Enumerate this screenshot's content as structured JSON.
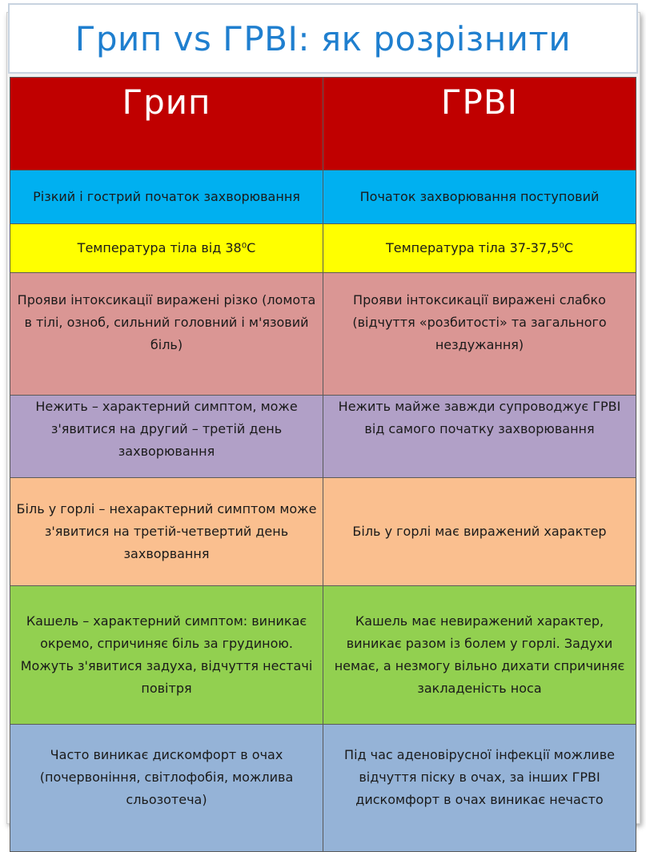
{
  "title": "Грип vs ГРВІ: як розрізнити",
  "headers": {
    "flu": "Грип",
    "arvi": "ГРВІ"
  },
  "rows": [
    {
      "flu": "Різкий і гострий початок захворювання",
      "arvi": "Початок захворювання поступовий"
    },
    {
      "flu": "Температура тіла від 38⁰С",
      "arvi": "Температура тіла 37-37,5⁰С"
    },
    {
      "flu": "Прояви інтоксикації виражені різко (ломота в тілі, озноб, сильний головний і м'язовий біль)",
      "arvi": "Прояви інтоксикації виражені слабко (відчуття «розбитості» та загального нездужання)"
    },
    {
      "flu": "Нежить – характерний симптом, може з'явитися на другий – третій день захворювання",
      "arvi": "Нежить майже завжди супроводжує ГРВІ від самого початку захворювання"
    },
    {
      "flu": "Біль у горлі – нехарактерний симптом може з'явитися на третій-четвертий день захворвання",
      "arvi": "Біль у горлі має виражений характер"
    },
    {
      "flu": "Кашель – характерний симптом: виникає окремо, спричиняє біль за грудиною. Можуть з'явитися задуха, відчуття нестачі повітря",
      "arvi": "Кашель має невиражений характер, виникає разом із болем у горлі. Задухи немає, а незмогу вільно дихати спричиняє закладеність носа"
    },
    {
      "flu": "Часто виникає дискомфорт в очах (почервоніння, світлофобія, можлива сльозотеча)",
      "arvi": "Під час аденовірусної інфекції можливе відчуття піску в очах, за інших ГРВІ дискомфорт в очах виникає нечасто"
    }
  ],
  "colors": {
    "title_text": "#1f7fcf",
    "header_bg": "#c00000",
    "row_backgrounds": [
      "#00b0f0",
      "#ffff00",
      "#da9694",
      "#b1a0c7",
      "#fabf8f",
      "#92d050",
      "#95b3d7"
    ]
  }
}
